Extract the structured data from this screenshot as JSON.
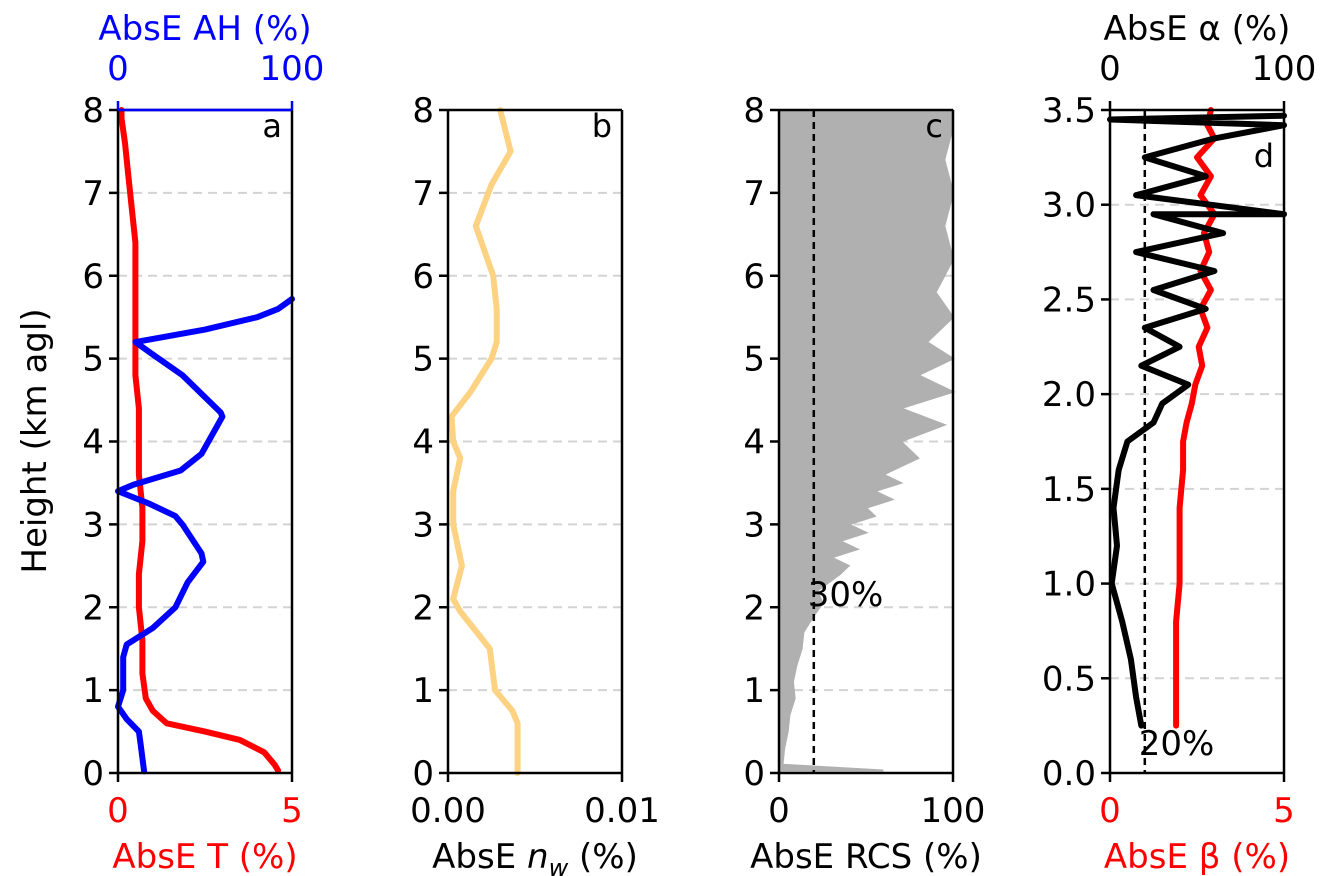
{
  "colors": {
    "temperature": "#ff0000",
    "absolute_humidity": "#0000ff",
    "refractivity": "#fdd283",
    "rcs": "#b0b0b0",
    "beta": "#ff0000",
    "alpha": "#000000",
    "axis": "#000000",
    "grid": "#d3d3d3"
  },
  "y_axis_label": "Height (km agl)",
  "chart_data": [
    {
      "id": "a",
      "type": "line",
      "panel_letter": "a",
      "ylabel": "Height (km agl)",
      "ylim": [
        0,
        8
      ],
      "yticks": [
        "0",
        "1",
        "2",
        "3",
        "4",
        "5",
        "6",
        "7",
        "8"
      ],
      "grid": "horizontal dashed",
      "bottom_axis": {
        "label": "AbsE T (%)",
        "xlim": [
          0,
          5
        ],
        "ticks": [
          "0",
          "5"
        ],
        "tick_values": [
          0,
          5
        ],
        "color": "#ff0000"
      },
      "top_axis": {
        "label": "AbsE AH (%)",
        "xlim": [
          0,
          100
        ],
        "ticks": [
          "0",
          "100"
        ],
        "tick_values": [
          0,
          100
        ],
        "color": "#0000ff"
      },
      "series": [
        {
          "axis": "bottom",
          "color": "#ff0000",
          "points": [
            [
              4.6,
              0.03
            ],
            [
              4.5,
              0.1
            ],
            [
              4.2,
              0.25
            ],
            [
              3.5,
              0.4
            ],
            [
              2.5,
              0.5
            ],
            [
              1.4,
              0.6
            ],
            [
              1.0,
              0.75
            ],
            [
              0.8,
              0.9
            ],
            [
              0.7,
              1.2
            ],
            [
              0.7,
              1.6
            ],
            [
              0.6,
              2.0
            ],
            [
              0.6,
              2.4
            ],
            [
              0.7,
              2.8
            ],
            [
              0.7,
              3.2
            ],
            [
              0.6,
              3.6
            ],
            [
              0.6,
              4.0
            ],
            [
              0.6,
              4.4
            ],
            [
              0.5,
              4.8
            ],
            [
              0.5,
              5.2
            ],
            [
              0.5,
              5.6
            ],
            [
              0.5,
              6.0
            ],
            [
              0.5,
              6.4
            ],
            [
              0.4,
              6.8
            ],
            [
              0.3,
              7.2
            ],
            [
              0.2,
              7.6
            ],
            [
              0.1,
              7.9
            ],
            [
              0.1,
              8.0
            ]
          ]
        },
        {
          "axis": "top",
          "color": "#0000ff",
          "points": [
            [
              15,
              0.02
            ],
            [
              13,
              0.35
            ],
            [
              12,
              0.5
            ],
            [
              5,
              0.65
            ],
            [
              0,
              0.8
            ],
            [
              3,
              1.0
            ],
            [
              3,
              1.4
            ],
            [
              5,
              1.55
            ],
            [
              20,
              1.75
            ],
            [
              33,
              2.0
            ],
            [
              40,
              2.3
            ],
            [
              49,
              2.55
            ],
            [
              48,
              2.65
            ],
            [
              37,
              3.0
            ],
            [
              33,
              3.1
            ],
            [
              18,
              3.25
            ],
            [
              0,
              3.4
            ],
            [
              9,
              3.48
            ],
            [
              36,
              3.65
            ],
            [
              48,
              3.85
            ],
            [
              60,
              4.3
            ],
            [
              59,
              4.35
            ],
            [
              37,
              4.8
            ],
            [
              20,
              5.05
            ],
            [
              10,
              5.2
            ],
            [
              50,
              5.35
            ],
            [
              80,
              5.5
            ],
            [
              92,
              5.6
            ],
            [
              100,
              5.72
            ]
          ]
        }
      ]
    },
    {
      "id": "b",
      "type": "line",
      "panel_letter": "b",
      "ylim": [
        0,
        8
      ],
      "yticks": [
        "0",
        "1",
        "2",
        "3",
        "4",
        "5",
        "6",
        "7",
        "8"
      ],
      "grid": "horizontal dashed",
      "bottom_axis": {
        "label": "AbsE ",
        "label_italic": "n",
        "label_sub": "w",
        "label_suffix": " (%)",
        "xlim": [
          0,
          0.01
        ],
        "ticks": [
          "0.00",
          "0.01"
        ],
        "tick_values": [
          0,
          0.01
        ],
        "color": "#000000"
      },
      "series": [
        {
          "axis": "bottom",
          "color": "#fdd283",
          "points": [
            [
              0.004,
              0.0
            ],
            [
              0.004,
              0.6
            ],
            [
              0.0037,
              0.75
            ],
            [
              0.0027,
              1.0
            ],
            [
              0.0024,
              1.5
            ],
            [
              0.0007,
              1.95
            ],
            [
              0.0003,
              2.1
            ],
            [
              0.0008,
              2.5
            ],
            [
              0.0003,
              3.0
            ],
            [
              0.0003,
              3.4
            ],
            [
              0.0007,
              3.8
            ],
            [
              0.0003,
              4.0
            ],
            [
              0.0002,
              4.3
            ],
            [
              0.0013,
              4.6
            ],
            [
              0.0025,
              5.0
            ],
            [
              0.0028,
              5.2
            ],
            [
              0.0028,
              5.6
            ],
            [
              0.0026,
              6.0
            ],
            [
              0.0016,
              6.6
            ],
            [
              0.0025,
              7.1
            ],
            [
              0.0036,
              7.5
            ],
            [
              0.003,
              8.0
            ]
          ]
        }
      ]
    },
    {
      "id": "c",
      "type": "area",
      "panel_letter": "c",
      "ylim": [
        0,
        8
      ],
      "yticks": [
        "0",
        "1",
        "2",
        "3",
        "4",
        "5",
        "6",
        "7",
        "8"
      ],
      "grid": "horizontal dashed",
      "bottom_axis": {
        "label": "AbsE RCS (%)",
        "xlim": [
          0,
          100
        ],
        "ticks": [
          "0",
          "100"
        ],
        "tick_values": [
          0,
          100
        ],
        "color": "#000000"
      },
      "threshold": {
        "value": 20,
        "label": "30%"
      },
      "series": [
        {
          "axis": "bottom",
          "color": "#b0b0b0",
          "points": [
            [
              60,
              0.03
            ],
            [
              2,
              0.1
            ],
            [
              3,
              0.3
            ],
            [
              5,
              0.5
            ],
            [
              6,
              0.7
            ],
            [
              9,
              0.9
            ],
            [
              8,
              1.1
            ],
            [
              10,
              1.3
            ],
            [
              13,
              1.5
            ],
            [
              14,
              1.7
            ],
            [
              20,
              1.9
            ],
            [
              25,
              2.05
            ],
            [
              22,
              2.2
            ],
            [
              35,
              2.4
            ],
            [
              40,
              2.5
            ],
            [
              30,
              2.6
            ],
            [
              45,
              2.7
            ],
            [
              35,
              2.8
            ],
            [
              50,
              2.9
            ],
            [
              40,
              3.0
            ],
            [
              55,
              3.1
            ],
            [
              50,
              3.2
            ],
            [
              65,
              3.3
            ],
            [
              55,
              3.4
            ],
            [
              70,
              3.5
            ],
            [
              60,
              3.6
            ],
            [
              80,
              3.8
            ],
            [
              70,
              4.0
            ],
            [
              95,
              4.2
            ],
            [
              70,
              4.4
            ],
            [
              100,
              4.6
            ],
            [
              80,
              4.8
            ],
            [
              100,
              5.0
            ],
            [
              85,
              5.2
            ],
            [
              100,
              5.5
            ],
            [
              90,
              5.8
            ],
            [
              100,
              6.2
            ],
            [
              95,
              6.6
            ],
            [
              100,
              7.0
            ],
            [
              95,
              7.4
            ],
            [
              100,
              7.8
            ],
            [
              100,
              8.0
            ]
          ]
        }
      ]
    },
    {
      "id": "d",
      "type": "line",
      "panel_letter": "d",
      "ylim": [
        0,
        3.5
      ],
      "yticks": [
        "0.0",
        "0.5",
        "1.0",
        "1.5",
        "2.0",
        "2.5",
        "3.0",
        "3.5"
      ],
      "grid": "horizontal dashed",
      "bottom_axis": {
        "label": "AbsE β (%)",
        "xlim": [
          0,
          5
        ],
        "ticks": [
          "0",
          "5"
        ],
        "tick_values": [
          0,
          5
        ],
        "color": "#ff0000"
      },
      "top_axis": {
        "label": "AbsE α (%)",
        "xlim": [
          0,
          100
        ],
        "ticks": [
          "0",
          "100"
        ],
        "tick_values": [
          0,
          100
        ],
        "color": "#000000"
      },
      "threshold": {
        "value": 1,
        "label": "20%"
      },
      "series": [
        {
          "axis": "bottom",
          "color": "#ff0000",
          "points": [
            [
              1.9,
              0.25
            ],
            [
              1.9,
              0.4
            ],
            [
              1.9,
              0.6
            ],
            [
              1.9,
              0.8
            ],
            [
              2.0,
              1.0
            ],
            [
              2.0,
              1.2
            ],
            [
              2.0,
              1.4
            ],
            [
              2.1,
              1.6
            ],
            [
              2.1,
              1.75
            ],
            [
              2.2,
              1.85
            ],
            [
              2.35,
              1.95
            ],
            [
              2.45,
              2.05
            ],
            [
              2.65,
              2.15
            ],
            [
              2.55,
              2.25
            ],
            [
              2.8,
              2.35
            ],
            [
              2.6,
              2.45
            ],
            [
              2.9,
              2.55
            ],
            [
              2.6,
              2.65
            ],
            [
              2.85,
              2.75
            ],
            [
              2.7,
              2.85
            ],
            [
              3.0,
              2.95
            ],
            [
              2.6,
              3.05
            ],
            [
              2.9,
              3.15
            ],
            [
              2.5,
              3.25
            ],
            [
              3.0,
              3.35
            ],
            [
              2.8,
              3.42
            ],
            [
              2.9,
              3.5
            ]
          ]
        },
        {
          "axis": "top",
          "color": "#000000",
          "points": [
            [
              18,
              0.25
            ],
            [
              15,
              0.4
            ],
            [
              12,
              0.6
            ],
            [
              7,
              0.8
            ],
            [
              1,
              1.0
            ],
            [
              4,
              1.2
            ],
            [
              2,
              1.4
            ],
            [
              5,
              1.6
            ],
            [
              10,
              1.75
            ],
            [
              25,
              1.85
            ],
            [
              30,
              1.95
            ],
            [
              45,
              2.05
            ],
            [
              18,
              2.15
            ],
            [
              40,
              2.25
            ],
            [
              20,
              2.35
            ],
            [
              55,
              2.45
            ],
            [
              25,
              2.55
            ],
            [
              60,
              2.65
            ],
            [
              15,
              2.75
            ],
            [
              65,
              2.85
            ],
            [
              25,
              2.95
            ],
            [
              100,
              2.95
            ],
            [
              15,
              3.05
            ],
            [
              55,
              3.15
            ],
            [
              20,
              3.25
            ],
            [
              60,
              3.35
            ],
            [
              100,
              3.42
            ],
            [
              0,
              3.45
            ],
            [
              100,
              3.47
            ]
          ]
        }
      ]
    }
  ]
}
